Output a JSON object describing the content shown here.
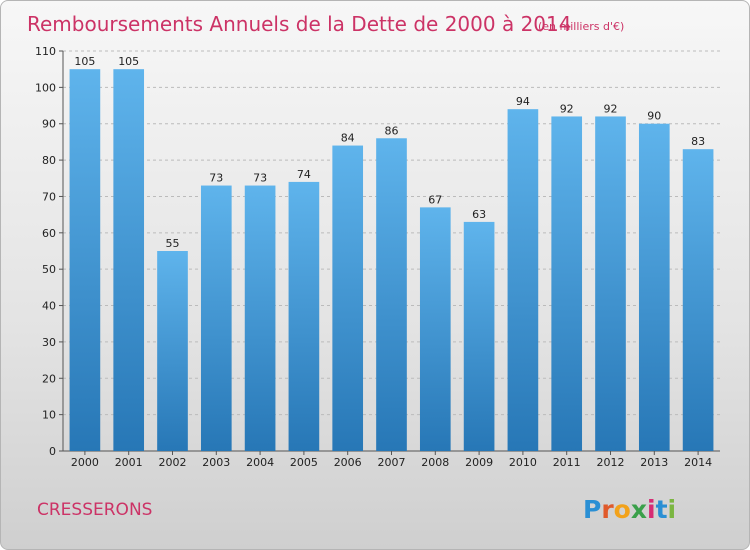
{
  "header": {
    "title": "Remboursements Annuels de la Dette de 2000 à 2014",
    "subtitle": "(en milliers d'€)"
  },
  "footer": {
    "commune": "CRESSERONS",
    "logo_letters": [
      "P",
      "r",
      "o",
      "x",
      "i",
      "t",
      "i"
    ],
    "logo_colors": [
      "#2a8fd4",
      "#e05a2b",
      "#f2a21b",
      "#3aa04a",
      "#d62c74",
      "#2a8fd4",
      "#7bb642"
    ]
  },
  "colors": {
    "bar_top": "#5fb4ec",
    "bar_bottom": "#2777b6",
    "grid": "#bbbbbb"
  },
  "chart_data": {
    "type": "bar",
    "title": "Remboursements Annuels de la Dette de 2000 à 2014",
    "subtitle": "(en milliers d'€)",
    "xlabel": "",
    "ylabel": "",
    "categories": [
      "2000",
      "2001",
      "2002",
      "2003",
      "2004",
      "2005",
      "2006",
      "2007",
      "2008",
      "2009",
      "2010",
      "2011",
      "2012",
      "2013",
      "2014"
    ],
    "values": [
      105,
      105,
      55,
      73,
      73,
      74,
      84,
      86,
      67,
      63,
      94,
      92,
      92,
      90,
      83
    ],
    "ylim": [
      0,
      110
    ],
    "yticks": [
      0,
      10,
      20,
      30,
      40,
      50,
      60,
      70,
      80,
      90,
      100,
      110
    ],
    "grid": true,
    "legend": "none"
  }
}
